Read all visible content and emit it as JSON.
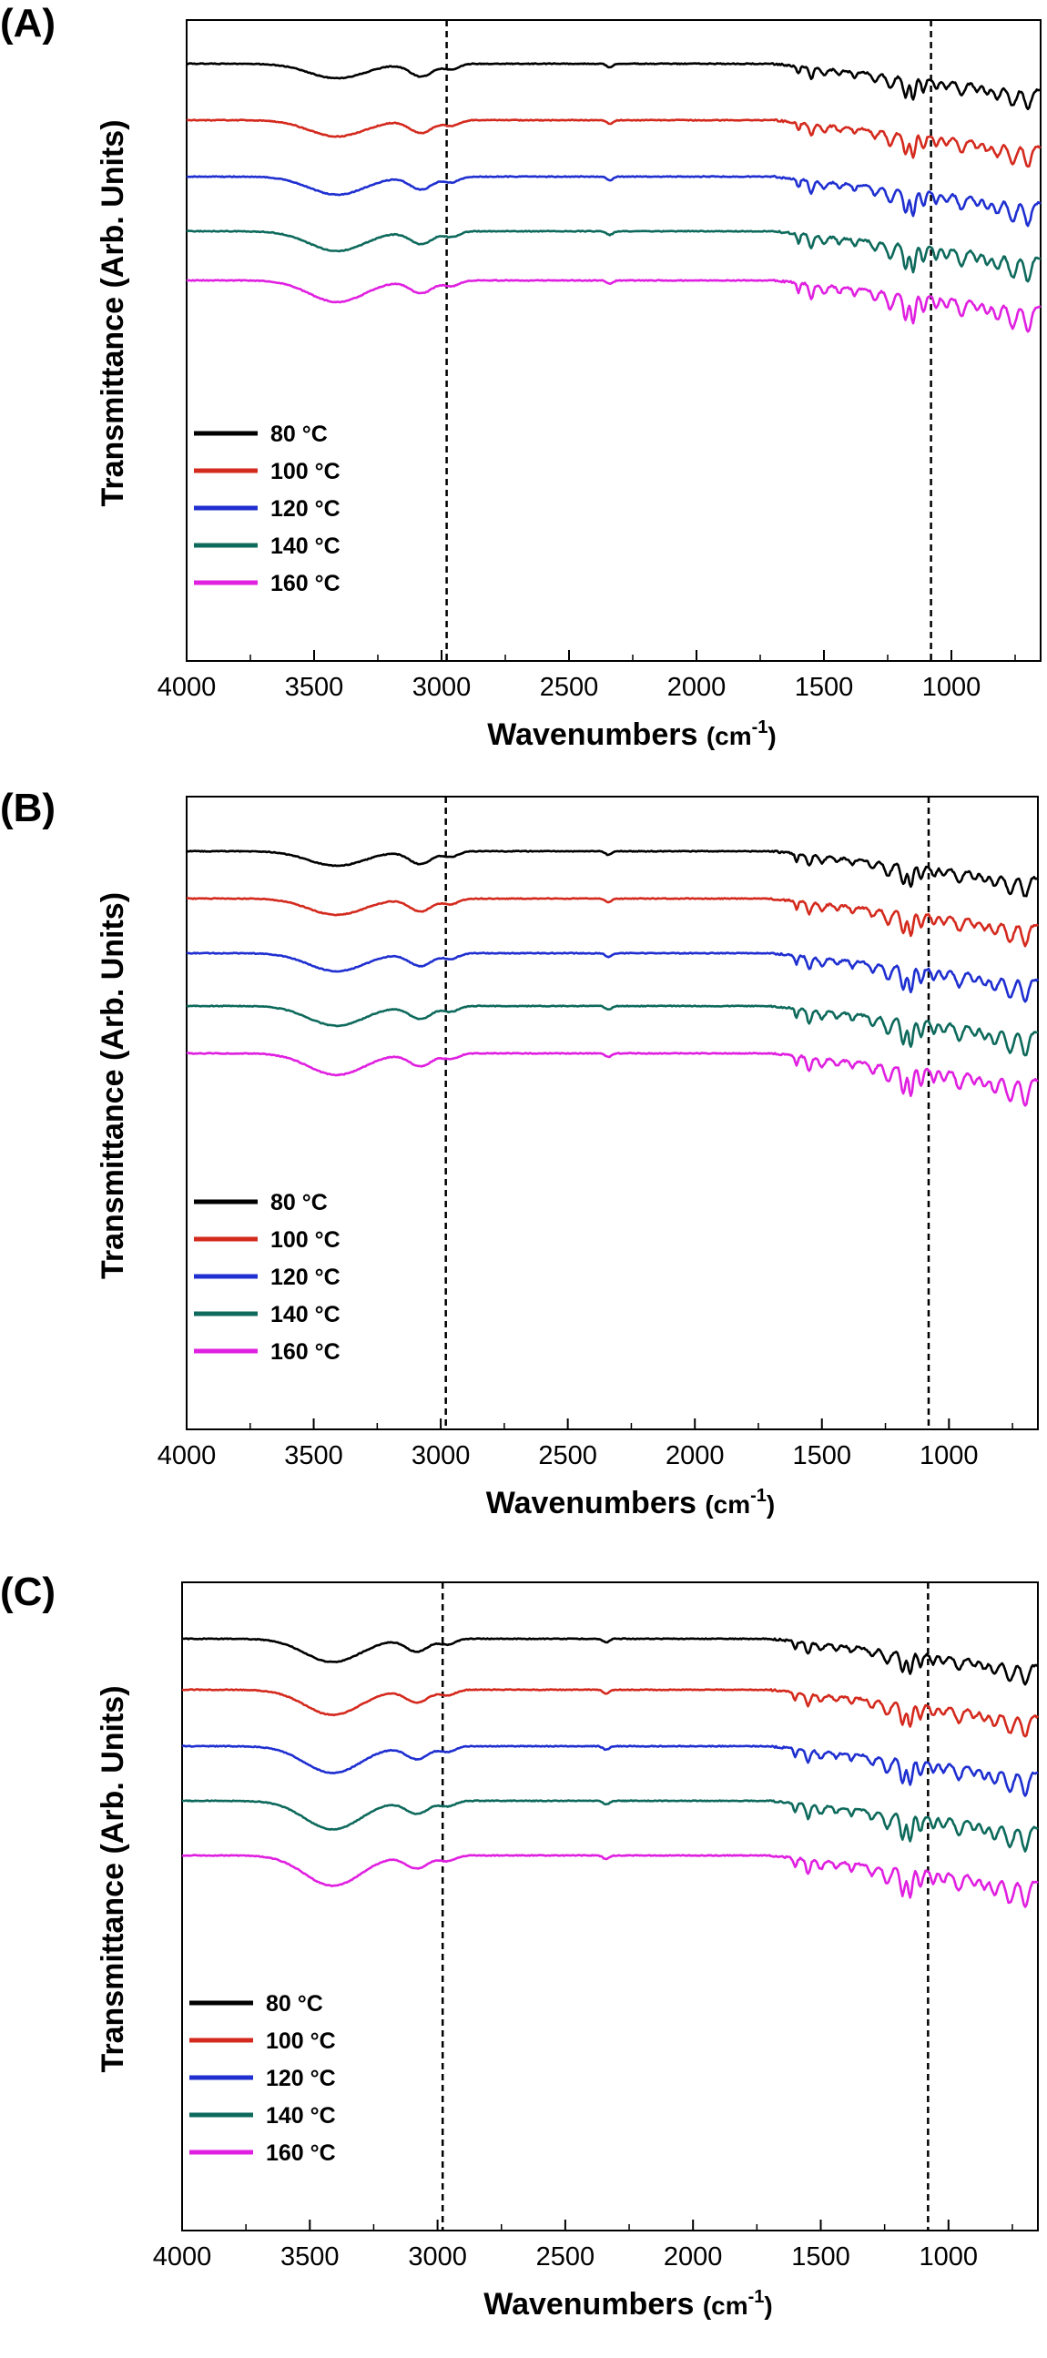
{
  "chart_data": [
    {
      "type": "line",
      "panel_label": "(A)",
      "xlabel": "Wavenumbers",
      "xlabel_unit": "(cm",
      "xlabel_unit_sup": "-1",
      "xlabel_unit_close": ")",
      "ylabel": "Transmittance (Arb. Units)",
      "x_ticks": [
        "4000",
        "3500",
        "3000",
        "2500",
        "2000",
        "1500",
        "1000"
      ],
      "xlim": [
        4000,
        650
      ],
      "reverse_x": true,
      "reference_lines_x": [
        2980,
        1080
      ],
      "legend_position": "bottom-left",
      "series": [
        {
          "name": "80 °C",
          "name_base": "80 ",
          "name_unit": "°C",
          "color": "#000000"
        },
        {
          "name": "100 °C",
          "name_base": "100 ",
          "name_unit": "°C",
          "color": "#d42a1e"
        },
        {
          "name": "120 °C",
          "name_base": "120 ",
          "name_unit": "°C",
          "color": "#1f2fd0"
        },
        {
          "name": "140 °C",
          "name_base": "140 ",
          "name_unit": "°C",
          "color": "#0e6a5c"
        },
        {
          "name": "160 °C",
          "name_base": "160 ",
          "name_unit": "°C",
          "color": "#e020e0"
        }
      ]
    },
    {
      "type": "line",
      "panel_label": "(B)",
      "xlabel": "Wavenumbers",
      "xlabel_unit": "(cm",
      "xlabel_unit_sup": "-1",
      "xlabel_unit_close": ")",
      "ylabel": "Transmittance (Arb. Units)",
      "x_ticks": [
        "4000",
        "3500",
        "3000",
        "2500",
        "2000",
        "1500",
        "1000"
      ],
      "xlim": [
        4000,
        650
      ],
      "reverse_x": true,
      "reference_lines_x": [
        2980,
        1080
      ],
      "legend_position": "bottom-left",
      "series": [
        {
          "name": "80 °C",
          "name_base": "80 ",
          "name_unit": "°C",
          "color": "#000000"
        },
        {
          "name": "100 °C",
          "name_base": "100 ",
          "name_unit": "°C",
          "color": "#d42a1e"
        },
        {
          "name": "120 °C",
          "name_base": "120 ",
          "name_unit": "°C",
          "color": "#1f2fd0"
        },
        {
          "name": "140 °C",
          "name_base": "140 ",
          "name_unit": "°C",
          "color": "#0e6a5c"
        },
        {
          "name": "160 °C",
          "name_base": "160 ",
          "name_unit": "°C",
          "color": "#e020e0"
        }
      ]
    },
    {
      "type": "line",
      "panel_label": "(C)",
      "xlabel": "Wavenumbers",
      "xlabel_unit": "(cm",
      "xlabel_unit_sup": "-1",
      "xlabel_unit_close": ")",
      "ylabel": "Transmittance (Arb. Units)",
      "x_ticks": [
        "4000",
        "3500",
        "3000",
        "2500",
        "2000",
        "1500",
        "1000"
      ],
      "xlim": [
        4000,
        650
      ],
      "reverse_x": true,
      "reference_lines_x": [
        2980,
        1080
      ],
      "legend_position": "bottom-left",
      "series": [
        {
          "name": "80 °C",
          "name_base": "80 ",
          "name_unit": "°C",
          "color": "#000000"
        },
        {
          "name": "100 °C",
          "name_base": "100 ",
          "name_unit": "°C",
          "color": "#d42a1e"
        },
        {
          "name": "120 °C",
          "name_base": "120 ",
          "name_unit": "°C",
          "color": "#1f2fd0"
        },
        {
          "name": "140 °C",
          "name_base": "140 ",
          "name_unit": "°C",
          "color": "#0e6a5c"
        },
        {
          "name": "160 °C",
          "name_base": "160 ",
          "name_unit": "°C",
          "color": "#e020e0"
        }
      ]
    }
  ]
}
